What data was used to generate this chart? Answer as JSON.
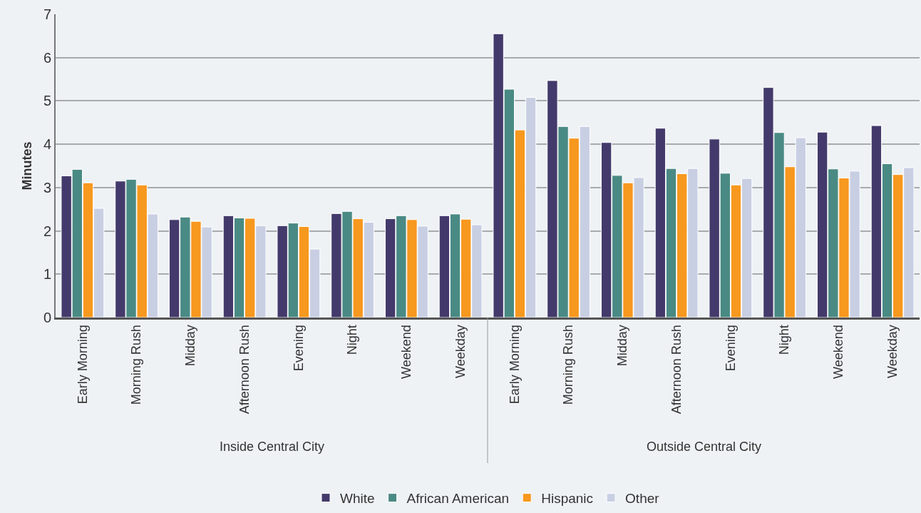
{
  "chart_data": {
    "type": "bar",
    "ylabel": "Minutes",
    "categories": [
      "Early Morning",
      "Morning Rush",
      "Midday",
      "Afternoon Rush",
      "Evening",
      "Night",
      "Weekend",
      "Weekday",
      "Early Morning",
      "Morning Rush",
      "Midday",
      "Afternoon Rush",
      "Evening",
      "Night",
      "Weekend",
      "Weekday"
    ],
    "series": [
      {
        "name": "White",
        "color": "#433a6b",
        "values": [
          3.27,
          3.15,
          2.26,
          2.35,
          2.12,
          2.4,
          2.28,
          2.35,
          6.55,
          5.47,
          4.04,
          4.37,
          4.12,
          5.31,
          4.28,
          4.43
        ]
      },
      {
        "name": "African American",
        "color": "#4a8a84",
        "values": [
          3.42,
          3.19,
          2.32,
          2.3,
          2.18,
          2.45,
          2.35,
          2.39,
          5.27,
          4.41,
          3.28,
          3.44,
          3.33,
          4.27,
          3.43,
          3.55
        ]
      },
      {
        "name": "Hispanic",
        "color": "#f7981f",
        "values": [
          3.11,
          3.06,
          2.22,
          2.29,
          2.1,
          2.28,
          2.26,
          2.27,
          4.33,
          4.14,
          3.11,
          3.32,
          3.06,
          3.48,
          3.22,
          3.3
        ]
      },
      {
        "name": "Other",
        "color": "#c9cfe3",
        "values": [
          2.52,
          2.39,
          2.09,
          2.12,
          1.58,
          2.2,
          2.11,
          2.14,
          5.08,
          4.41,
          3.23,
          3.44,
          3.21,
          4.15,
          3.38,
          3.46
        ]
      }
    ],
    "annotations": [
      "Inside Central City",
      "Outside Central City"
    ],
    "ylim": [
      0,
      7
    ],
    "yticks": [
      0,
      1,
      2,
      3,
      4,
      5,
      6,
      7
    ],
    "grid": "y",
    "legend": "bottom"
  }
}
